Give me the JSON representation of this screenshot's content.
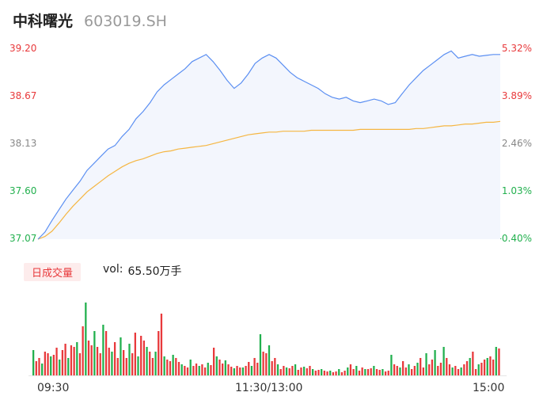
{
  "header": {
    "name": "中科曙光",
    "code": "603019.SH"
  },
  "colors": {
    "price_line": "#5b8ff2",
    "avg_line": "#f5b642",
    "up": "#e8393b",
    "down": "#22b04e",
    "neutral": "#888888"
  },
  "volume_panel": {
    "badge": "日成交量",
    "label": "vol:",
    "value": "65.50万手"
  },
  "chart_data": [
    {
      "type": "line",
      "y_left_ticks": [
        "39.20",
        "38.67",
        "38.13",
        "37.60",
        "37.07"
      ],
      "y_right_ticks": [
        "5.32%",
        "3.89%",
        "2.46%",
        "1.03%",
        "-0.40%"
      ],
      "x_ticks": [
        "09:30",
        "11:30/13:00",
        "15:00"
      ],
      "ylim": [
        37.07,
        39.2
      ],
      "series": [
        {
          "values": [
            37.07,
            37.15,
            37.28,
            37.4,
            37.52,
            37.62,
            37.72,
            37.84,
            37.92,
            38.0,
            38.08,
            38.12,
            38.22,
            38.3,
            38.42,
            38.5,
            38.6,
            38.72,
            38.8,
            38.86,
            38.92,
            38.98,
            39.06,
            39.1,
            39.14,
            39.06,
            38.96,
            38.85,
            38.76,
            38.82,
            38.92,
            39.04,
            39.1,
            39.14,
            39.1,
            39.02,
            38.94,
            38.88,
            38.84,
            38.8,
            38.76,
            38.7,
            38.66,
            38.64,
            38.66,
            38.62,
            38.6,
            38.62,
            38.64,
            38.62,
            38.58,
            38.6,
            38.7,
            38.8,
            38.88,
            38.96,
            39.02,
            39.08,
            39.14,
            39.18,
            39.1,
            39.12,
            39.14,
            39.12,
            39.13,
            39.14,
            39.14
          ]
        },
        {
          "values": [
            37.07,
            37.1,
            37.16,
            37.25,
            37.35,
            37.44,
            37.52,
            37.6,
            37.66,
            37.72,
            37.78,
            37.83,
            37.88,
            37.92,
            37.95,
            37.97,
            38.0,
            38.03,
            38.05,
            38.06,
            38.08,
            38.09,
            38.1,
            38.11,
            38.12,
            38.14,
            38.16,
            38.18,
            38.2,
            38.22,
            38.24,
            38.25,
            38.26,
            38.27,
            38.27,
            38.28,
            38.28,
            38.28,
            38.28,
            38.29,
            38.29,
            38.29,
            38.29,
            38.29,
            38.29,
            38.29,
            38.3,
            38.3,
            38.3,
            38.3,
            38.3,
            38.3,
            38.3,
            38.3,
            38.31,
            38.31,
            38.32,
            38.33,
            38.34,
            38.34,
            38.35,
            38.36,
            38.36,
            38.37,
            38.38,
            38.38,
            38.39
          ]
        }
      ]
    },
    {
      "type": "bar",
      "values": [
        32,
        18,
        22,
        15,
        30,
        28,
        24,
        26,
        35,
        20,
        32,
        40,
        22,
        38,
        36,
        42,
        28,
        62,
        92,
        44,
        38,
        56,
        36,
        28,
        64,
        56,
        35,
        30,
        42,
        22,
        48,
        32,
        22,
        40,
        28,
        54,
        24,
        50,
        44,
        36,
        30,
        22,
        30,
        56,
        78,
        24,
        20,
        18,
        26,
        22,
        17,
        14,
        12,
        10,
        20,
        12,
        15,
        12,
        14,
        10,
        16,
        13,
        35,
        24,
        20,
        15,
        19,
        14,
        11,
        9,
        12,
        10,
        10,
        12,
        17,
        12,
        22,
        16,
        52,
        30,
        28,
        38,
        18,
        22,
        14,
        8,
        12,
        10,
        9,
        12,
        14,
        7,
        10,
        11,
        9,
        12,
        8,
        6,
        7,
        8,
        6,
        5,
        6,
        4,
        5,
        8,
        4,
        6,
        10,
        14,
        8,
        12,
        6,
        10,
        8,
        8,
        9,
        12,
        8,
        7,
        8,
        5,
        6,
        26,
        14,
        12,
        10,
        18,
        10,
        14,
        8,
        12,
        16,
        22,
        10,
        28,
        14,
        20,
        32,
        12,
        16,
        36,
        22,
        14,
        10,
        12,
        8,
        10,
        14,
        18,
        22,
        30,
        8,
        14,
        16,
        20,
        22,
        24,
        20,
        36,
        34
      ]
    }
  ]
}
